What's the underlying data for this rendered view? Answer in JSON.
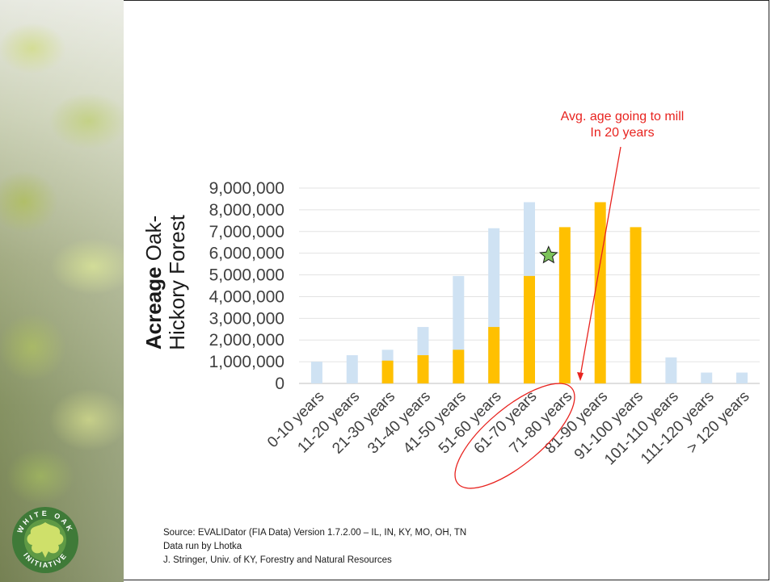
{
  "chart_data": {
    "type": "bar",
    "categories": [
      "0-10 years",
      "11-20 years",
      "21-30 years",
      "31-40 years",
      "41-50 years",
      "51-60 years",
      "61-70 years",
      "71-80 years",
      "81-90 years",
      "91-100 years",
      "101-110 years",
      "111-120 years",
      "> 120 years"
    ],
    "series": [
      {
        "values": [
          1000000,
          1300000,
          1550000,
          2600000,
          4950000,
          7150000,
          8350000,
          null,
          null,
          null,
          1200000,
          500000,
          500000
        ],
        "color": "#cfe2f3"
      },
      {
        "values": [
          null,
          null,
          1050000,
          1300000,
          1550000,
          2600000,
          4950000,
          7200000,
          8350000,
          7200000,
          null,
          null,
          null
        ],
        "color": "#ffc000"
      }
    ],
    "y_ticks": [
      "0",
      "1,000,000",
      "2,000,000",
      "3,000,000",
      "4,000,000",
      "5,000,000",
      "6,000,000",
      "7,000,000",
      "8,000,000",
      "9,000,000"
    ],
    "ylim": [
      0,
      9000000
    ],
    "ylabel_bold": "Acreage",
    "ylabel_rest": "Oak-Hickory Forest",
    "ylabel_line1": "Oak-",
    "ylabel_line2": "Hickory Forest",
    "grid": true,
    "annotation": {
      "line1": "Avg. age going to mill",
      "line2": "In 20 years",
      "color": "#e8231f"
    },
    "star": {
      "category": "71-80 years",
      "y": 5900000,
      "color": "#7dc35b"
    }
  },
  "source": {
    "line1": "Source: EVALIDator (FIA Data) Version 1.7.2.00 – IL, IN, KY, MO, OH, TN",
    "line2": "Data run by Lhotka",
    "line3": "J. Stringer, Univ. of KY, Forestry and Natural Resources"
  },
  "logo": {
    "top_text": "WHITE OAK",
    "bottom_text": "INITIATIVE"
  }
}
